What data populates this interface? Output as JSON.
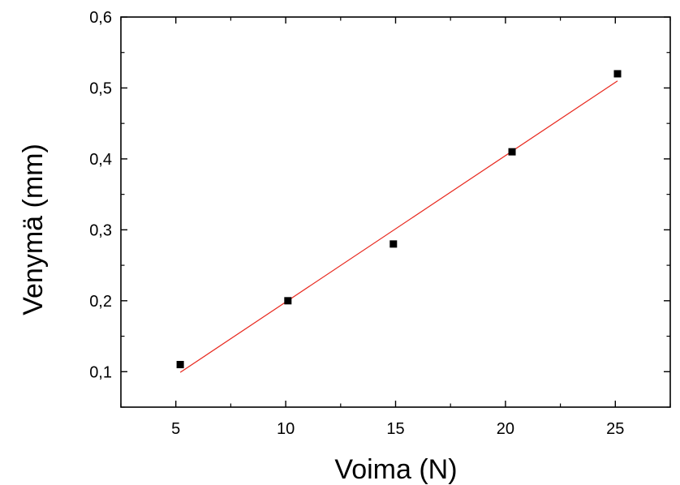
{
  "chart_data": {
    "type": "scatter",
    "title": "",
    "xlabel": "Voima (N)",
    "ylabel": "Venymä (mm)",
    "xlim": [
      2.5,
      27.5
    ],
    "ylim": [
      0.05,
      0.6
    ],
    "x_major_ticks": [
      5,
      10,
      15,
      20,
      25
    ],
    "x_tick_labels": [
      "5",
      "10",
      "15",
      "20",
      "25"
    ],
    "y_major_ticks": [
      0.1,
      0.2,
      0.3,
      0.4,
      0.5,
      0.6
    ],
    "y_tick_labels": [
      "0,1",
      "0,2",
      "0,3",
      "0,4",
      "0,5",
      "0,6"
    ],
    "grid": false,
    "series": [
      {
        "type": "scatter",
        "marker": "square",
        "color": "#000000",
        "points": [
          {
            "x": 5.2,
            "y": 0.11
          },
          {
            "x": 10.1,
            "y": 0.2
          },
          {
            "x": 14.9,
            "y": 0.28
          },
          {
            "x": 20.3,
            "y": 0.41
          },
          {
            "x": 25.1,
            "y": 0.52
          }
        ]
      },
      {
        "type": "line",
        "color": "#e8281e",
        "points": [
          {
            "x": 5.2,
            "y": 0.099
          },
          {
            "x": 25.1,
            "y": 0.51
          }
        ]
      }
    ]
  }
}
